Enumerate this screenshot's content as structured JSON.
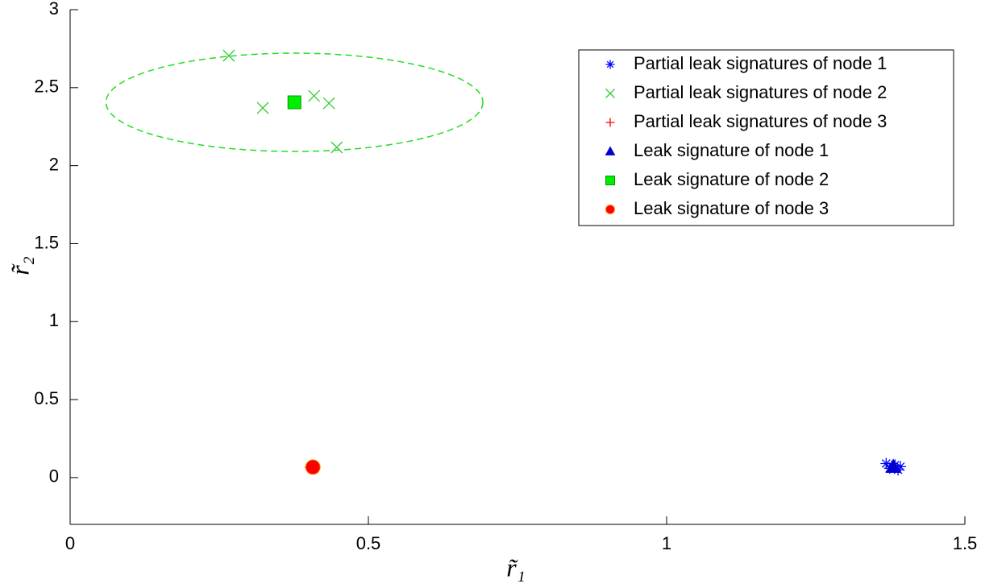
{
  "chart_data": {
    "type": "scatter",
    "x_label": "r̃₁",
    "y_label": "r̃₂",
    "xlim": [
      0,
      1.5
    ],
    "ylim": [
      -0.3,
      3
    ],
    "xticks": [
      0,
      0.5,
      1,
      1.5
    ],
    "yticks": [
      0,
      0.5,
      1,
      1.5,
      2,
      2.5,
      3
    ],
    "legend": "northeast",
    "series": [
      {
        "name": "Partial leak signatures of node 1",
        "color": "#0000ff",
        "marker": "asterisk",
        "size": 14,
        "x": [
          1.368,
          1.378,
          1.388,
          1.392,
          1.383,
          1.374
        ],
        "values": [
          0.09,
          0.07,
          0.05,
          0.07,
          0.08,
          0.06
        ]
      },
      {
        "name": "Partial leak signatures of node 2",
        "color": "#33cc33",
        "marker": "x",
        "size": 14,
        "x": [
          0.266,
          0.323,
          0.409,
          0.434,
          0.447
        ],
        "values": [
          2.705,
          2.37,
          2.447,
          2.4,
          2.117
        ]
      },
      {
        "name": "Partial leak signatures of node 3",
        "color": "#ff0000",
        "marker": "plus",
        "size": 14,
        "x": [
          0.403,
          0.41
        ],
        "values": [
          0.065,
          0.07
        ]
      },
      {
        "name": "Leak signature of node 1",
        "color": "#0000cc",
        "marker": "triangle",
        "size": 18,
        "x": [
          1.38
        ],
        "values": [
          0.07
        ]
      },
      {
        "name": "Leak signature of node 2",
        "color": "#00ee00",
        "marker": "square",
        "size": 16,
        "x": [
          0.376
        ],
        "values": [
          2.406
        ]
      },
      {
        "name": "Leak signature of node 3",
        "color": "#ff0000",
        "marker": "circle",
        "size": 18,
        "x": [
          0.407
        ],
        "values": [
          0.067
        ]
      }
    ],
    "ellipses": [
      {
        "color": "#22dd22",
        "cx": 0.376,
        "cy": 2.406,
        "rx": 0.316,
        "ry": 0.315
      }
    ]
  }
}
